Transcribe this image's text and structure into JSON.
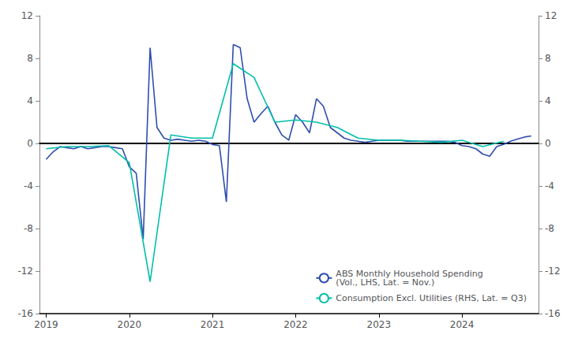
{
  "chart_data": {
    "type": "line",
    "series": [
      {
        "name": "ABS Monthly Household Spending\n(Vol., LHS, Lat. = Nov.)",
        "color": "#2E4DAE",
        "x": [
          2019.0,
          2019.083,
          2019.167,
          2019.25,
          2019.333,
          2019.417,
          2019.5,
          2019.583,
          2019.667,
          2019.75,
          2019.833,
          2019.917,
          2020.0,
          2020.083,
          2020.167,
          2020.25,
          2020.333,
          2020.417,
          2020.5,
          2020.583,
          2020.667,
          2020.75,
          2020.833,
          2020.917,
          2021.0,
          2021.083,
          2021.167,
          2021.25,
          2021.333,
          2021.417,
          2021.5,
          2021.583,
          2021.667,
          2021.75,
          2021.833,
          2021.917,
          2022.0,
          2022.083,
          2022.167,
          2022.25,
          2022.333,
          2022.417,
          2022.5,
          2022.583,
          2022.667,
          2022.75,
          2022.833,
          2022.917,
          2023.0,
          2023.083,
          2023.167,
          2023.25,
          2023.333,
          2023.417,
          2023.5,
          2023.583,
          2023.667,
          2023.75,
          2023.833,
          2023.917,
          2024.0,
          2024.083,
          2024.167,
          2024.25,
          2024.333,
          2024.417,
          2024.5,
          2024.583,
          2024.667,
          2024.75,
          2024.833
        ],
        "values": [
          -1.5,
          -0.8,
          -0.3,
          -0.4,
          -0.5,
          -0.3,
          -0.5,
          -0.4,
          -0.3,
          -0.3,
          -0.4,
          -0.5,
          -2.2,
          -2.8,
          -9.0,
          9.0,
          1.5,
          0.5,
          0.3,
          0.4,
          0.3,
          0.2,
          0.3,
          0.2,
          -0.1,
          -0.2,
          -5.5,
          9.3,
          9.0,
          4.2,
          2.0,
          2.8,
          3.5,
          2.0,
          0.8,
          0.3,
          2.7,
          2.0,
          1.0,
          4.2,
          3.5,
          1.5,
          1.0,
          0.5,
          0.3,
          0.2,
          0.1,
          0.2,
          0.3,
          0.3,
          0.3,
          0.3,
          0.2,
          0.2,
          0.2,
          0.2,
          0.2,
          0.2,
          0.2,
          0.1,
          -0.2,
          -0.3,
          -0.5,
          -1.0,
          -1.2,
          -0.3,
          -0.1,
          0.2,
          0.4,
          0.6,
          0.7
        ]
      },
      {
        "name": "Consumption Excl. Utilities (RHS, Lat. = Q3)",
        "color": "#00BFA8",
        "axis": "y2",
        "x": [
          2019.0,
          2019.25,
          2019.5,
          2019.75,
          2020.0,
          2020.25,
          2020.5,
          2020.75,
          2021.0,
          2021.25,
          2021.5,
          2021.75,
          2022.0,
          2022.25,
          2022.5,
          2022.75,
          2023.0,
          2023.25,
          2023.5,
          2023.75,
          2024.0,
          2024.25,
          2024.5
        ],
        "values": [
          -0.5,
          -0.3,
          -0.3,
          -0.2,
          -1.8,
          -13.0,
          0.8,
          0.5,
          0.5,
          7.5,
          6.2,
          2.0,
          2.2,
          2.0,
          1.5,
          0.5,
          0.3,
          0.3,
          0.2,
          0.1,
          0.3,
          -0.3,
          0.2
        ]
      }
    ],
    "xlim": [
      2018.92,
      2024.92
    ],
    "xticks": [
      2019,
      2020,
      2021,
      2022,
      2023,
      2024
    ],
    "ylim": [
      -16,
      12
    ],
    "yticks": [
      -16,
      -12,
      -8,
      -4,
      0,
      4,
      8,
      12
    ],
    "y2lim": [
      -16,
      12
    ],
    "y2ticks": [
      -16,
      -12,
      -8,
      -4,
      0,
      4,
      8,
      12
    ],
    "grid": false,
    "legend": "lower right"
  }
}
